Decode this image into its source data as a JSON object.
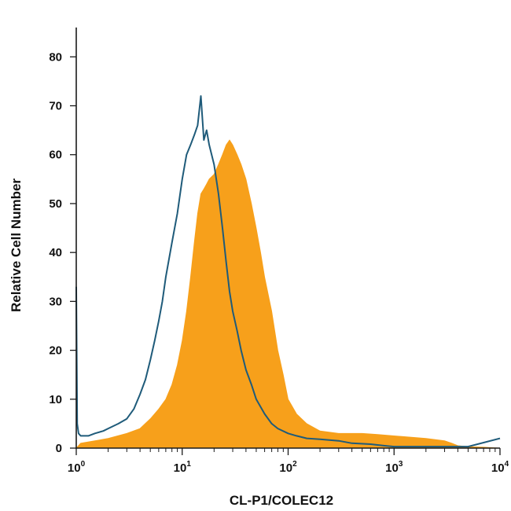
{
  "chart_data": {
    "type": "area",
    "title": "",
    "xlabel": "CL-P1/COLEC12",
    "ylabel": "Relative Cell Number",
    "x_scale": "log",
    "xlim": [
      1,
      10000
    ],
    "ylim": [
      0,
      86
    ],
    "grid": false,
    "legend": "none",
    "x_ticks": [
      {
        "value": 1,
        "base": "10",
        "exp": "0"
      },
      {
        "value": 10,
        "base": "10",
        "exp": "1"
      },
      {
        "value": 100,
        "base": "10",
        "exp": "2"
      },
      {
        "value": 1000,
        "base": "10",
        "exp": "3"
      },
      {
        "value": 10000,
        "base": "10",
        "exp": "4"
      }
    ],
    "y_ticks": [
      0,
      10,
      20,
      30,
      40,
      50,
      60,
      70,
      80
    ],
    "series": [
      {
        "style": "filled",
        "color": "#F7A01B",
        "x": [
          1,
          1.1,
          1.5,
          2,
          3,
          4,
          5,
          6,
          7,
          8,
          9,
          10,
          11,
          12,
          13,
          14,
          15,
          16,
          17,
          18,
          20,
          22,
          24,
          26,
          28,
          30,
          33,
          36,
          40,
          45,
          50,
          55,
          60,
          70,
          80,
          90,
          100,
          120,
          150,
          200,
          300,
          500,
          700,
          1000,
          2000,
          3000,
          3500,
          4000,
          5000,
          7000,
          10000
        ],
        "y": [
          0,
          1,
          1.5,
          2,
          3,
          4,
          6,
          8,
          10,
          13,
          17,
          22,
          28,
          35,
          42,
          48,
          52,
          53,
          54,
          55,
          56,
          58,
          60,
          62,
          63,
          62,
          60,
          58,
          55,
          50,
          45,
          40,
          35,
          28,
          20,
          15,
          10,
          7,
          5,
          3.5,
          3,
          3,
          2.8,
          2.5,
          2,
          1.5,
          1,
          0.5,
          0.3,
          0.2,
          0
        ]
      },
      {
        "style": "outline",
        "color": "#1F5B7A",
        "x": [
          1,
          1.02,
          1.05,
          1.1,
          1.3,
          1.5,
          1.8,
          2,
          2.5,
          3,
          3.5,
          4,
          4.5,
          5,
          5.5,
          6,
          6.5,
          7,
          8,
          9,
          10,
          11,
          12,
          13,
          14,
          15,
          16,
          17,
          18,
          20,
          22,
          24,
          26,
          28,
          30,
          33,
          36,
          40,
          45,
          50,
          60,
          70,
          80,
          100,
          120,
          150,
          200,
          300,
          400,
          600,
          800,
          1000,
          2000,
          5000,
          10000
        ],
        "y": [
          33,
          5,
          3,
          2.5,
          2.5,
          3,
          3.5,
          4,
          5,
          6,
          8,
          11,
          14,
          18,
          22,
          26,
          30,
          35,
          42,
          48,
          55,
          60,
          62,
          64,
          66,
          72,
          63,
          65,
          62,
          58,
          52,
          45,
          38,
          32,
          28,
          24,
          20,
          16,
          13,
          10,
          7,
          5,
          4,
          3,
          2.5,
          2,
          1.8,
          1.5,
          1,
          0.8,
          0.5,
          0.3,
          0.3,
          0.3,
          2
        ]
      }
    ]
  }
}
